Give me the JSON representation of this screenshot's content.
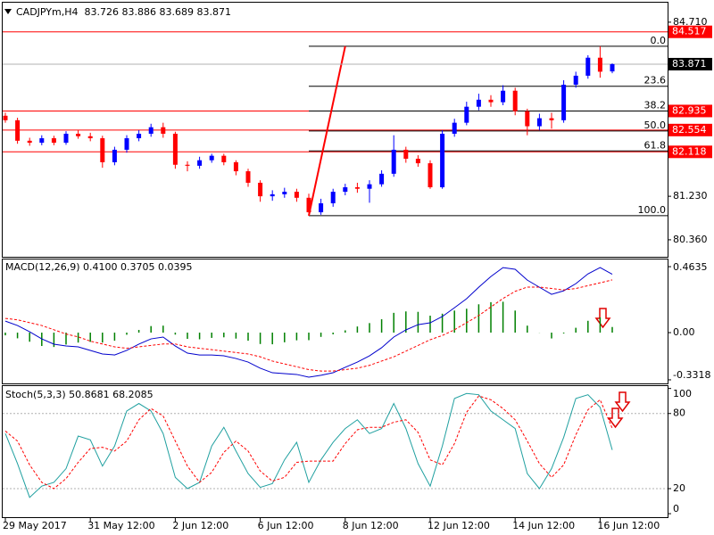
{
  "chart_data": [
    {
      "type": "candlestick",
      "title": "CADJPYm,H4  83.726 83.886 83.689 83.871",
      "categories": [
        "29 May 2017",
        null,
        null,
        null,
        null,
        null,
        null,
        "31 May 12:00",
        null,
        null,
        null,
        null,
        null,
        null,
        "2 Jun 12:00",
        null,
        null,
        null,
        null,
        null,
        null,
        "6 Jun 12:00",
        null,
        null,
        null,
        null,
        null,
        null,
        "8 Jun 12:00",
        null,
        null,
        null,
        null,
        null,
        null,
        "12 Jun 12:00",
        null,
        null,
        null,
        null,
        null,
        null,
        "14 Jun 12:00",
        null,
        null,
        null,
        null,
        null,
        null,
        "16 Jun 12:00",
        null
      ],
      "open": [
        82.84,
        82.75,
        82.34,
        82.3,
        82.39,
        82.3,
        82.48,
        82.43,
        82.39,
        81.91,
        82.16,
        82.39,
        82.48,
        82.61,
        82.48,
        81.86,
        81.84,
        81.95,
        82.04,
        81.91,
        81.73,
        81.5,
        81.23,
        81.27,
        81.32,
        81.2,
        80.91,
        81.09,
        81.32,
        81.41,
        81.38,
        81.47,
        81.68,
        82.16,
        81.98,
        81.89,
        81.41,
        82.48,
        82.7,
        83.02,
        83.16,
        83.11,
        83.34,
        82.93,
        82.63,
        82.79,
        82.75,
        83.46,
        83.64,
        84.0,
        83.726
      ],
      "high": [
        82.9,
        82.8,
        82.4,
        82.45,
        82.44,
        82.53,
        82.55,
        82.5,
        82.44,
        82.22,
        82.45,
        82.55,
        82.68,
        82.7,
        82.52,
        81.93,
        82.02,
        82.08,
        82.08,
        81.95,
        81.78,
        81.55,
        81.35,
        81.4,
        81.38,
        81.28,
        81.18,
        81.38,
        81.48,
        81.5,
        81.55,
        81.75,
        82.45,
        82.22,
        82.05,
        81.95,
        82.55,
        82.78,
        83.12,
        83.28,
        83.25,
        83.45,
        83.4,
        82.98,
        82.88,
        82.9,
        83.55,
        83.72,
        84.05,
        84.23,
        83.886
      ],
      "low": [
        82.7,
        82.28,
        82.24,
        82.25,
        82.25,
        82.26,
        82.38,
        82.33,
        81.8,
        81.85,
        82.1,
        82.33,
        82.42,
        82.4,
        81.78,
        81.73,
        81.78,
        81.9,
        81.85,
        81.65,
        81.42,
        81.12,
        81.14,
        81.2,
        81.12,
        80.84,
        80.86,
        81.02,
        81.25,
        81.3,
        81.1,
        81.42,
        81.62,
        81.9,
        81.82,
        81.38,
        81.38,
        82.42,
        82.65,
        82.95,
        83.02,
        83.05,
        82.85,
        82.45,
        82.55,
        82.58,
        82.7,
        83.4,
        83.58,
        83.6,
        83.689
      ],
      "close": [
        82.75,
        82.34,
        82.3,
        82.39,
        82.3,
        82.48,
        82.43,
        82.39,
        81.91,
        82.16,
        82.39,
        82.48,
        82.61,
        82.48,
        81.86,
        81.84,
        81.95,
        82.04,
        81.91,
        81.73,
        81.5,
        81.23,
        81.27,
        81.32,
        81.2,
        80.91,
        81.09,
        81.32,
        81.41,
        81.38,
        81.47,
        81.68,
        82.16,
        81.98,
        81.89,
        81.41,
        82.48,
        82.7,
        83.02,
        83.16,
        83.11,
        83.34,
        82.93,
        82.63,
        82.79,
        82.75,
        83.46,
        83.64,
        84.0,
        83.72,
        83.871
      ],
      "up_color": "#0000ff",
      "down_color": "#ff0000",
      "ylim": [
        80.02,
        85.1
      ],
      "yticks": [
        {
          "value": 84.71,
          "label": "84.710"
        },
        {
          "value": 81.23,
          "label": "81.230"
        },
        {
          "value": 80.36,
          "label": "80.360"
        }
      ],
      "levels": [
        84.517,
        82.935,
        82.554,
        82.118
      ],
      "level_color": "#ff0000",
      "fibo": {
        "high": 84.229,
        "low": 80.842,
        "color": "#ff0000",
        "levels": [
          {
            "value": 0,
            "label": "0.0"
          },
          23.6,
          38.2,
          {
            "value": 50,
            "label": "50.0"
          },
          61.8,
          {
            "value": 100,
            "label": "100.0"
          }
        ]
      }
    },
    {
      "type": "macd",
      "title": "MACD(12,26,9) 0.4100 0.3705 0.0395",
      "ylim": [
        -0.357,
        0.514
      ],
      "yticks": [
        0.4635,
        {
          "value": 0,
          "label": "0.00"
        },
        -0.3318
      ],
      "series": [
        {
          "style": "histogram",
          "color": "#008000",
          "values": [
            -0.019,
            -0.04,
            -0.064,
            -0.094,
            -0.101,
            -0.084,
            -0.07,
            -0.065,
            -0.07,
            -0.057,
            -0.015,
            0.019,
            0.046,
            0.049,
            -0.014,
            -0.044,
            -0.047,
            -0.037,
            -0.033,
            -0.042,
            -0.057,
            -0.08,
            -0.082,
            -0.068,
            -0.054,
            -0.053,
            -0.03,
            -0.012,
            0.016,
            0.043,
            0.067,
            0.094,
            0.139,
            0.149,
            0.146,
            0.119,
            0.133,
            0.155,
            0.168,
            0.199,
            0.214,
            0.217,
            0.155,
            0.049,
            -0.001,
            -0.041,
            -0.006,
            0.034,
            0.083,
            0.107,
            0.0395
          ]
        },
        {
          "style": "line",
          "color": "#0000cc",
          "values": [
            0.081,
            0.05,
            0.006,
            -0.044,
            -0.081,
            -0.094,
            -0.1,
            -0.125,
            -0.15,
            -0.157,
            -0.125,
            -0.081,
            -0.044,
            -0.031,
            -0.094,
            -0.144,
            -0.157,
            -0.157,
            -0.163,
            -0.182,
            -0.207,
            -0.25,
            -0.282,
            -0.288,
            -0.294,
            -0.313,
            -0.3,
            -0.282,
            -0.244,
            -0.207,
            -0.163,
            -0.106,
            -0.031,
            0.019,
            0.056,
            0.069,
            0.113,
            0.175,
            0.238,
            0.319,
            0.394,
            0.457,
            0.445,
            0.369,
            0.319,
            0.269,
            0.294,
            0.344,
            0.413,
            0.457,
            0.41
          ]
        },
        {
          "style": "dotted",
          "color": "#ff0000",
          "values": [
            0.1,
            0.09,
            0.07,
            0.05,
            0.02,
            -0.01,
            -0.03,
            -0.06,
            -0.08,
            -0.1,
            -0.11,
            -0.1,
            -0.09,
            -0.08,
            -0.08,
            -0.1,
            -0.11,
            -0.12,
            -0.13,
            -0.14,
            -0.15,
            -0.17,
            -0.2,
            -0.22,
            -0.24,
            -0.26,
            -0.27,
            -0.27,
            -0.26,
            -0.25,
            -0.23,
            -0.2,
            -0.17,
            -0.13,
            -0.09,
            -0.05,
            -0.02,
            0.02,
            0.07,
            0.12,
            0.18,
            0.24,
            0.29,
            0.32,
            0.32,
            0.31,
            0.3,
            0.31,
            0.33,
            0.35,
            0.3705
          ]
        }
      ]
    },
    {
      "type": "line",
      "title": "Stoch(5,3,3) 50.8681 68.2085",
      "ylim": [
        -2.8,
        101.9
      ],
      "yticks": [
        100,
        80,
        20,
        0
      ],
      "levels": [
        80,
        20
      ],
      "level_color": "#b0b0b0",
      "series": [
        {
          "style": "line",
          "color": "#20a0a0",
          "values": [
            64,
            40,
            13,
            22,
            25,
            36,
            62,
            59,
            38,
            54,
            82,
            88,
            82,
            64,
            29,
            20,
            25,
            54,
            69,
            50,
            32,
            21,
            24,
            43,
            57,
            25,
            43,
            57,
            68,
            75,
            64,
            68,
            88,
            68,
            40,
            22,
            54,
            92,
            96,
            95,
            82,
            75,
            68,
            32,
            20,
            36,
            61,
            92,
            95,
            85,
            50.8681
          ]
        },
        {
          "style": "dotted",
          "color": "#ff0000",
          "values": [
            66,
            58,
            39,
            25,
            20,
            28,
            41,
            52,
            53,
            50,
            58,
            75,
            84,
            78,
            58,
            38,
            25,
            33,
            49,
            58,
            50,
            34,
            26,
            29,
            41,
            42,
            42,
            42,
            56,
            67,
            69,
            69,
            73,
            75,
            65,
            43,
            39,
            56,
            81,
            94,
            91,
            84,
            75,
            58,
            40,
            29,
            39,
            63,
            83,
            91,
            68.2085
          ]
        }
      ]
    }
  ]
}
